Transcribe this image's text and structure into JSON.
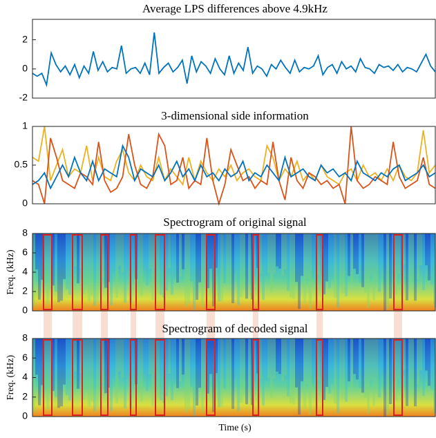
{
  "chart_data": [
    {
      "type": "line",
      "title": "Average LPS differences above 4.9kHz",
      "ylim": [
        -2,
        3.4
      ],
      "yticks": [
        -2,
        0,
        2
      ],
      "series": [
        {
          "color": "#0072BD",
          "values": [
            -0.3,
            -0.5,
            -0.3,
            -1.1,
            1.1,
            0.3,
            -0.2,
            0.2,
            -0.4,
            0.3,
            -0.6,
            0.2,
            -0.3,
            1.2,
            -0.1,
            0.5,
            -0.2,
            0.1,
            0.0,
            1.6,
            -0.3,
            0.0,
            0.1,
            -0.3,
            0.4,
            -0.4,
            2.5,
            -0.3,
            0.1,
            0.4,
            -0.2,
            0.1,
            0.6,
            -1.0,
            0.9,
            -0.2,
            0.5,
            0.2,
            -0.3,
            0.7,
            0.0,
            -0.4,
            0.9,
            -0.3,
            0.4,
            -0.1,
            1.5,
            -0.3,
            0.2,
            0.0,
            -0.5,
            0.3,
            0.0,
            0.6,
            0.1,
            -0.3,
            0.6,
            -0.2,
            0.1,
            0.0,
            0.2,
            0.9,
            -0.4,
            0.1,
            0.3,
            -0.3,
            0.5,
            0.0,
            0.2,
            -0.2,
            0.7,
            0.1,
            0.0,
            -0.3,
            0.3,
            0.1,
            0.2,
            -0.1,
            0.3,
            -0.2,
            0.1,
            0.0,
            -0.2,
            0.4,
            1.0,
            0.2,
            -0.2
          ]
        }
      ]
    },
    {
      "type": "line",
      "title": "3-dimensional side information",
      "ylim": [
        0,
        1
      ],
      "yticks": [
        0,
        0.5,
        1
      ],
      "series": [
        {
          "color": "#EDB120",
          "values": [
            0.6,
            0.55,
            1.0,
            0.3,
            0.5,
            0.7,
            0.35,
            0.45,
            0.4,
            0.75,
            0.3,
            0.6,
            0.35,
            0.3,
            0.55,
            0.7,
            0.4,
            0.3,
            0.5,
            0.35,
            0.3,
            0.6,
            0.3,
            0.45,
            0.35,
            0.25,
            0.6,
            0.3,
            0.55,
            0.4,
            0.3,
            0.45,
            0.35,
            0.5,
            0.3,
            0.4,
            0.45,
            0.35,
            0.3,
            0.75,
            0.6,
            0.3,
            0.45,
            0.35,
            0.55,
            0.3,
            0.4,
            0.3,
            0.5,
            0.35,
            0.3,
            0.25,
            0.4,
            0.45,
            0.3,
            0.5,
            0.35,
            0.4,
            0.3,
            0.45,
            0.3,
            0.5,
            0.35,
            0.3,
            0.4,
            0.95,
            0.4,
            0.5
          ]
        },
        {
          "color": "#D95319",
          "values": [
            0.3,
            0.25,
            0.0,
            0.85,
            0.6,
            0.3,
            0.25,
            0.2,
            0.4,
            0.35,
            0.25,
            0.8,
            0.3,
            0.15,
            0.2,
            0.35,
            0.9,
            0.5,
            0.25,
            0.2,
            0.35,
            0.9,
            0.75,
            0.25,
            0.3,
            0.6,
            0.2,
            0.3,
            0.25,
            0.85,
            0.3,
            0.0,
            0.25,
            0.7,
            0.5,
            0.3,
            0.35,
            0.2,
            0.3,
            0.25,
            0.8,
            0.3,
            0.05,
            0.6,
            0.3,
            0.2,
            0.4,
            0.35,
            0.25,
            0.3,
            0.2,
            0.25,
            0.0,
            1.0,
            0.3,
            0.2,
            0.25,
            0.35,
            0.3,
            0.25,
            0.8,
            0.35,
            0.2,
            0.25,
            0.3,
            0.6,
            0.25,
            0.2
          ]
        },
        {
          "color": "#0072BD",
          "values": [
            0.25,
            0.3,
            0.4,
            0.2,
            0.35,
            0.5,
            0.35,
            0.6,
            0.4,
            0.3,
            0.55,
            0.3,
            0.45,
            0.4,
            0.35,
            0.75,
            0.6,
            0.3,
            0.45,
            0.4,
            0.35,
            0.5,
            0.3,
            0.4,
            0.55,
            0.35,
            0.45,
            0.3,
            0.5,
            0.35,
            0.4,
            0.3,
            0.45,
            0.35,
            0.4,
            0.55,
            0.3,
            0.4,
            0.35,
            0.5,
            0.4,
            0.3,
            0.6,
            0.35,
            0.4,
            0.45,
            0.35,
            0.3,
            0.5,
            0.4,
            0.45,
            0.35,
            0.4,
            0.3,
            0.55,
            0.4,
            0.35,
            0.3,
            0.4,
            0.35,
            0.45,
            0.5,
            0.3,
            0.35,
            0.4,
            0.5,
            0.35,
            0.4
          ]
        }
      ]
    },
    {
      "type": "heatmap",
      "title": "Spectrogram of original signal",
      "ylabel": "Freq. (kHz)",
      "ylim": [
        0,
        8
      ],
      "yticks": [
        0,
        2,
        4,
        6,
        8
      ]
    },
    {
      "type": "heatmap",
      "title": "Spectrogram of decoded signal",
      "ylabel": "Freq. (kHz)",
      "xlabel": "Time (s)",
      "ylim": [
        0,
        8
      ],
      "yticks": [
        0,
        2,
        4,
        6,
        8
      ]
    }
  ]
}
